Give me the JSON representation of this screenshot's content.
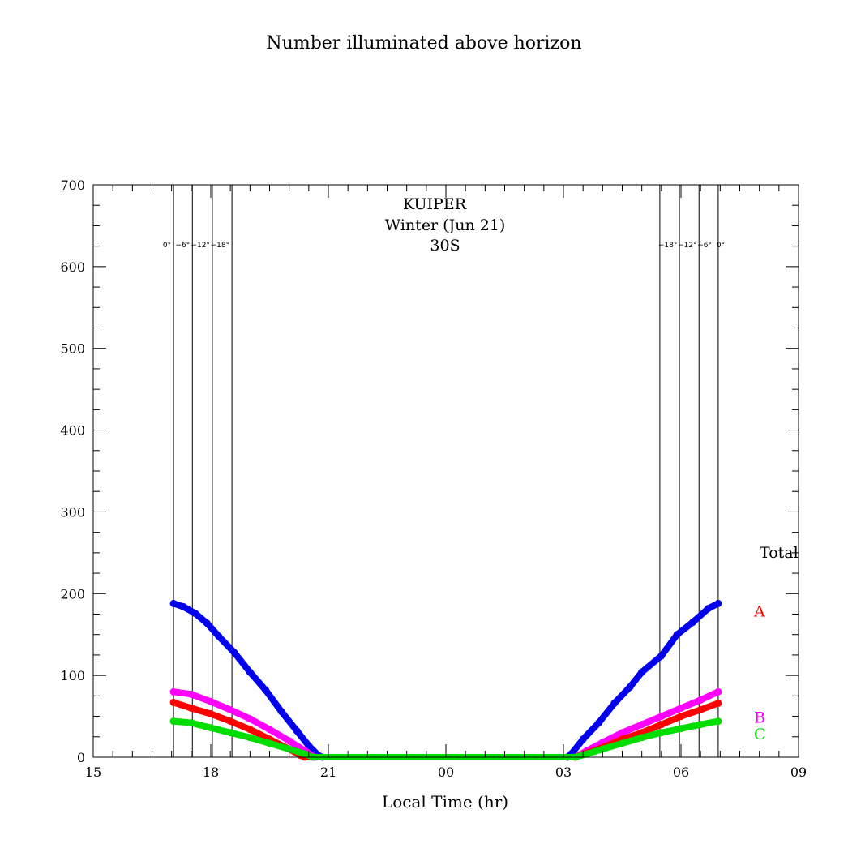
{
  "chart_data": {
    "type": "scatter",
    "title": "Number illuminated above horizon",
    "annotations": [
      "KUIPER",
      "Winter (Jun 21)",
      "30S"
    ],
    "xlabel": "Local Time (hr)",
    "ylabel": "",
    "x_tick_labels": [
      "15",
      "18",
      "21",
      "00",
      "03",
      "06",
      "09"
    ],
    "x_tick_values": [
      15,
      18,
      21,
      24,
      27,
      30,
      33
    ],
    "xlim": [
      15,
      33
    ],
    "ylim": [
      0,
      700
    ],
    "y_ticks": [
      0,
      100,
      200,
      300,
      400,
      500,
      600,
      700
    ],
    "grid": false,
    "twilight_lines": [
      {
        "x": 17.05,
        "label": "0°"
      },
      {
        "x": 17.53,
        "label": "−6°"
      },
      {
        "x": 18.04,
        "label": "−12°"
      },
      {
        "x": 18.54,
        "label": "−18°"
      },
      {
        "x": 29.46,
        "label": "−18°"
      },
      {
        "x": 29.96,
        "label": "−12°"
      },
      {
        "x": 30.46,
        "label": "−6°"
      },
      {
        "x": 30.95,
        "label": "0°"
      }
    ],
    "series": [
      {
        "name": "Total",
        "color": "#0000ee",
        "points": [
          [
            17.05,
            188
          ],
          [
            17.3,
            184
          ],
          [
            17.6,
            176
          ],
          [
            17.9,
            164
          ],
          [
            18.2,
            148
          ],
          [
            18.6,
            128
          ],
          [
            19.0,
            104
          ],
          [
            19.4,
            82
          ],
          [
            19.8,
            56
          ],
          [
            20.2,
            32
          ],
          [
            20.5,
            14
          ],
          [
            20.75,
            2
          ],
          [
            20.85,
            0
          ],
          [
            27.1,
            0
          ],
          [
            27.2,
            4
          ],
          [
            27.5,
            22
          ],
          [
            27.9,
            42
          ],
          [
            28.3,
            66
          ],
          [
            28.7,
            86
          ],
          [
            29.0,
            104
          ],
          [
            29.5,
            124
          ],
          [
            29.9,
            150
          ],
          [
            30.3,
            165
          ],
          [
            30.7,
            182
          ],
          [
            30.95,
            188
          ]
        ]
      },
      {
        "name": "B",
        "color": "#ff00ff",
        "points": [
          [
            17.05,
            80
          ],
          [
            17.5,
            77
          ],
          [
            18.0,
            68
          ],
          [
            18.5,
            58
          ],
          [
            19.0,
            47
          ],
          [
            19.5,
            34
          ],
          [
            20.0,
            20
          ],
          [
            20.4,
            8
          ],
          [
            20.65,
            0
          ],
          [
            27.3,
            0
          ],
          [
            27.6,
            8
          ],
          [
            28.0,
            18
          ],
          [
            28.5,
            30
          ],
          [
            29.0,
            40
          ],
          [
            29.5,
            50
          ],
          [
            30.0,
            60
          ],
          [
            30.5,
            70
          ],
          [
            30.95,
            80
          ]
        ]
      },
      {
        "name": "A",
        "color": "#ff0000",
        "points": [
          [
            17.05,
            67
          ],
          [
            17.5,
            60
          ],
          [
            18.0,
            53
          ],
          [
            18.5,
            44
          ],
          [
            19.0,
            34
          ],
          [
            19.5,
            22
          ],
          [
            20.0,
            10
          ],
          [
            20.3,
            2
          ],
          [
            20.4,
            0
          ],
          [
            27.3,
            0
          ],
          [
            27.6,
            5
          ],
          [
            28.0,
            12
          ],
          [
            28.5,
            22
          ],
          [
            29.0,
            30
          ],
          [
            29.5,
            40
          ],
          [
            30.0,
            50
          ],
          [
            30.5,
            58
          ],
          [
            30.95,
            66
          ]
        ]
      },
      {
        "name": "C",
        "color": "#00dd00",
        "points": [
          [
            17.05,
            44
          ],
          [
            17.5,
            42
          ],
          [
            18.0,
            36
          ],
          [
            18.5,
            30
          ],
          [
            19.0,
            24
          ],
          [
            19.5,
            17
          ],
          [
            20.0,
            10
          ],
          [
            20.4,
            4
          ],
          [
            20.6,
            0
          ],
          [
            27.3,
            0
          ],
          [
            27.6,
            4
          ],
          [
            28.0,
            10
          ],
          [
            28.5,
            17
          ],
          [
            29.0,
            24
          ],
          [
            29.5,
            30
          ],
          [
            30.0,
            35
          ],
          [
            30.5,
            40
          ],
          [
            30.95,
            44
          ]
        ]
      }
    ],
    "legend": [
      {
        "label": "Total",
        "color": "#000000",
        "y": 250
      },
      {
        "label": "A",
        "color": "#ff0000",
        "y": 178
      },
      {
        "label": "B",
        "color": "#ff00ff",
        "y": 48
      },
      {
        "label": "C",
        "color": "#00dd00",
        "y": 28
      }
    ]
  }
}
